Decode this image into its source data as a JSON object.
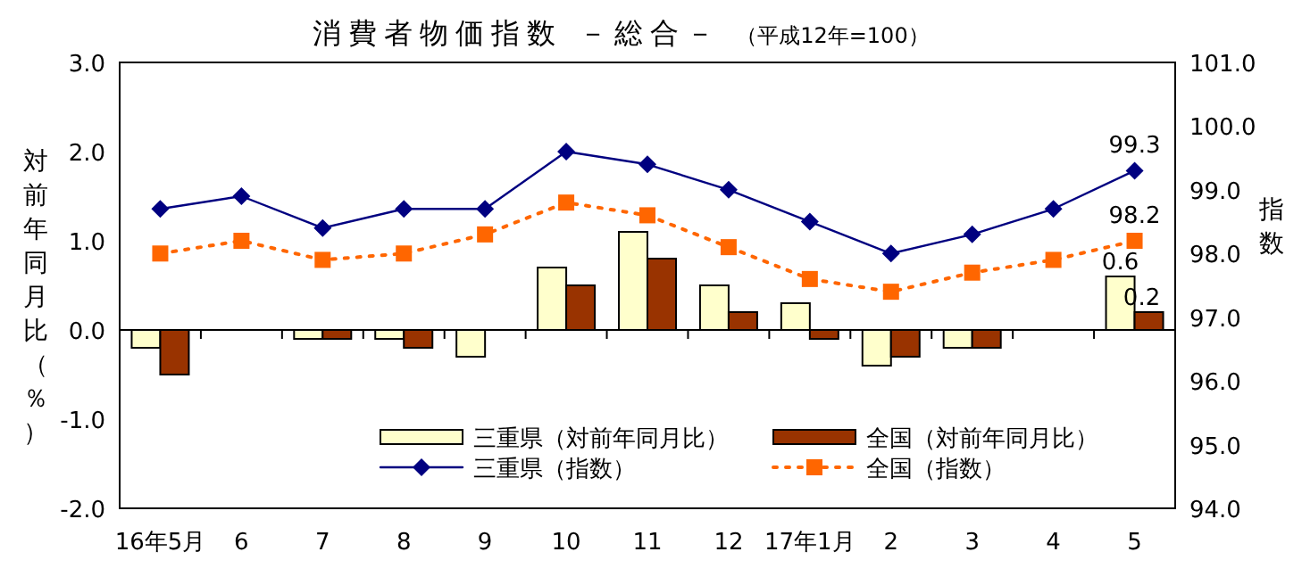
{
  "chart_data": {
    "type": "bar",
    "title": "消費者物価指数 －総合－",
    "subtitle": "（平成12年=100）",
    "ylabel": "対前年同月比（％）",
    "y2label": "指数",
    "categories": [
      "16年5月",
      "6",
      "7",
      "8",
      "9",
      "10",
      "11",
      "12",
      "17年1月",
      "2",
      "3",
      "4",
      "5"
    ],
    "series": [
      {
        "name": "三重県（対前年同月比）",
        "color": "#ffffcc",
        "values": [
          -0.2,
          0,
          -0.1,
          -0.1,
          -0.3,
          0.7,
          1.1,
          0.5,
          0.3,
          -0.4,
          -0.2,
          0,
          0.6
        ],
        "value_labels": [
          null,
          null,
          null,
          null,
          null,
          null,
          null,
          null,
          null,
          null,
          null,
          null,
          "0.6"
        ]
      },
      {
        "name": "全国（対前年同月比）",
        "color": "#993300",
        "values": [
          -0.5,
          0,
          -0.1,
          -0.2,
          0,
          0.5,
          0.8,
          0.2,
          -0.1,
          -0.3,
          -0.2,
          0,
          0.2
        ],
        "value_labels": [
          null,
          null,
          null,
          null,
          null,
          null,
          null,
          null,
          null,
          null,
          null,
          null,
          "0.2"
        ]
      },
      {
        "name": "三重県（指数）",
        "type": "line",
        "axis": "y2",
        "color": "#000080",
        "marker": "diamond",
        "line_style": "solid",
        "values": [
          98.7,
          98.9,
          98.4,
          98.7,
          98.7,
          99.6,
          99.4,
          99.0,
          98.5,
          98.0,
          98.3,
          98.7,
          99.3
        ],
        "value_labels": [
          null,
          null,
          null,
          null,
          null,
          null,
          null,
          null,
          null,
          null,
          null,
          null,
          "99.3"
        ]
      },
      {
        "name": "全国（指数）",
        "type": "line",
        "axis": "y2",
        "color": "#ff6600",
        "marker": "square",
        "line_style": "dotted",
        "values": [
          98.0,
          98.2,
          97.9,
          98.0,
          98.3,
          98.8,
          98.6,
          98.1,
          97.6,
          97.4,
          97.7,
          97.9,
          98.2
        ],
        "value_labels": [
          null,
          null,
          null,
          null,
          null,
          null,
          null,
          null,
          null,
          null,
          null,
          null,
          "98.2"
        ]
      }
    ],
    "ylim": [
      -2,
      3
    ],
    "yticks": [
      {
        "value": -2,
        "label": "-2.0"
      },
      {
        "value": -1,
        "label": "-1.0"
      },
      {
        "value": 0,
        "label": "0.0"
      },
      {
        "value": 1,
        "label": "1.0"
      },
      {
        "value": 2,
        "label": "2.0"
      },
      {
        "value": 3,
        "label": "3.0"
      }
    ],
    "y2lim": [
      94,
      101
    ],
    "y2ticks": [
      {
        "value": 94,
        "label": "94.0"
      },
      {
        "value": 95,
        "label": "95.0"
      },
      {
        "value": 96,
        "label": "96.0"
      },
      {
        "value": 97,
        "label": "97.0"
      },
      {
        "value": 98,
        "label": "98.0"
      },
      {
        "value": 99,
        "label": "99.0"
      },
      {
        "value": 100,
        "label": "100.0"
      },
      {
        "value": 101,
        "label": "101.0"
      }
    ],
    "legend": "bottom"
  }
}
